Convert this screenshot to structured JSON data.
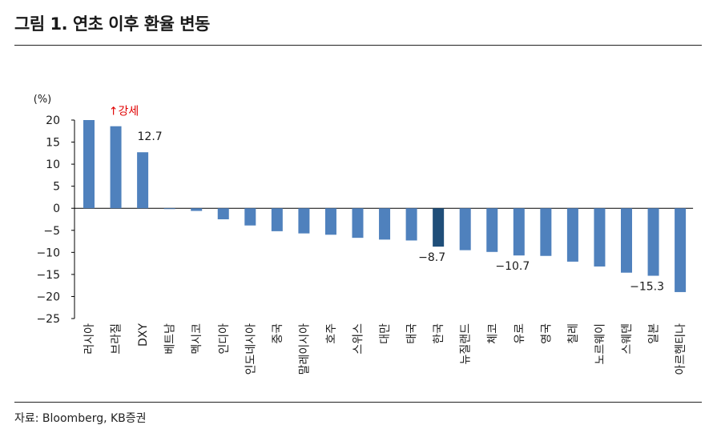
{
  "title": "그림 1. 연초 이후 환율 변동",
  "source": "자료: Bloomberg, KB증권",
  "chart_data": {
    "type": "bar",
    "unit_label": "(%)",
    "ylim": [
      -25,
      20
    ],
    "yticks": [
      20,
      15,
      10,
      5,
      0,
      -5,
      -10,
      -15,
      -20,
      -25
    ],
    "categories": [
      "러시아",
      "브라질",
      "DXY",
      "베트남",
      "멕시코",
      "인디아",
      "인도네시아",
      "중국",
      "말레이시아",
      "호주",
      "스위스",
      "대만",
      "태국",
      "한국",
      "뉴질랜드",
      "체코",
      "유로",
      "영국",
      "칠레",
      "노르웨이",
      "스웨덴",
      "일본",
      "아르헨티나"
    ],
    "values": [
      20.0,
      18.6,
      12.7,
      -0.1,
      -0.6,
      -2.5,
      -3.9,
      -5.2,
      -5.7,
      -6.0,
      -6.7,
      -7.1,
      -7.3,
      -8.7,
      -9.5,
      -9.9,
      -10.7,
      -10.8,
      -12.1,
      -13.2,
      -14.6,
      -15.3,
      -19.0
    ],
    "highlight_index": 13,
    "data_labels": [
      {
        "index": 2,
        "text": "12.7"
      },
      {
        "index": 13,
        "text": "−8.7"
      },
      {
        "index": 16,
        "text": "−10.7"
      },
      {
        "index": 21,
        "text": "−15.3"
      }
    ],
    "annotation": {
      "index": 1,
      "text": "↑강세"
    },
    "colors": {
      "bar": "#4f81bd",
      "highlight": "#1f4e79",
      "annotation": "#e00000",
      "axis": "#000000"
    }
  }
}
